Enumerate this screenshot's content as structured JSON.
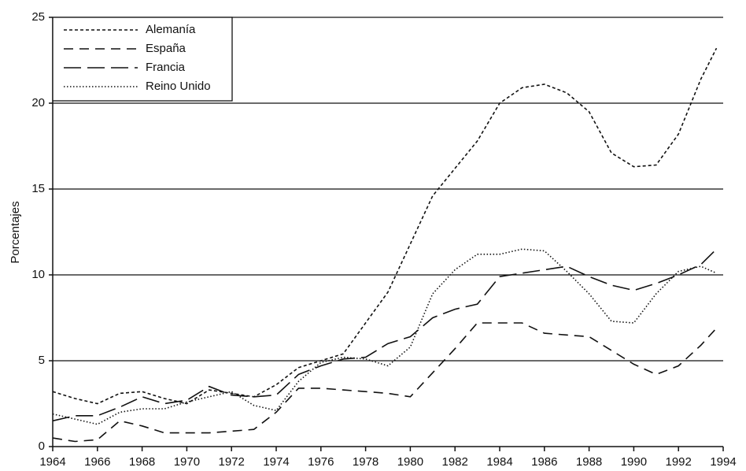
{
  "chart_data": {
    "type": "line",
    "ylabel": "Porcentajes",
    "x": [
      1964,
      1965,
      1966,
      1967,
      1968,
      1969,
      1970,
      1971,
      1972,
      1973,
      1974,
      1975,
      1976,
      1977,
      1978,
      1979,
      1980,
      1981,
      1982,
      1983,
      1984,
      1985,
      1986,
      1987,
      1988,
      1989,
      1990,
      1991,
      1992,
      1993,
      1993.7
    ],
    "series": [
      {
        "name": "Alemanía",
        "color": "#111111",
        "dash": "4,3",
        "values": [
          3.2,
          2.8,
          2.5,
          3.1,
          3.2,
          2.8,
          2.5,
          3.3,
          3.1,
          2.9,
          3.6,
          4.6,
          5.0,
          5.4,
          7.2,
          9.0,
          11.8,
          14.6,
          16.2,
          17.8,
          20.0,
          20.9,
          21.1,
          20.6,
          19.5,
          17.1,
          16.3,
          16.4,
          18.2,
          21.4,
          23.2
        ]
      },
      {
        "name": "España",
        "color": "#111111",
        "dash": "12,8",
        "values": [
          0.5,
          0.3,
          0.4,
          1.5,
          1.2,
          0.8,
          0.8,
          0.8,
          0.9,
          1.0,
          2.0,
          3.4,
          3.4,
          3.3,
          3.2,
          3.1,
          2.9,
          4.3,
          5.7,
          7.2,
          7.2,
          7.2,
          6.6,
          6.5,
          6.4,
          5.6,
          4.8,
          4.2,
          4.7,
          5.9,
          6.9
        ]
      },
      {
        "name": "Francia",
        "color": "#111111",
        "dash": "22,8",
        "values": [
          1.5,
          1.8,
          1.8,
          2.3,
          2.9,
          2.5,
          2.7,
          3.5,
          3.0,
          2.9,
          3.0,
          4.2,
          4.7,
          5.1,
          5.2,
          6.0,
          6.4,
          7.5,
          8.0,
          8.3,
          9.9,
          10.1,
          10.3,
          10.5,
          9.9,
          9.4,
          9.1,
          9.5,
          10.0,
          10.6,
          11.5
        ]
      },
      {
        "name": "Reino Unido",
        "color": "#111111",
        "dash": "1.5,2.5",
        "values": [
          1.9,
          1.6,
          1.3,
          2.0,
          2.2,
          2.2,
          2.6,
          2.9,
          3.2,
          2.4,
          2.1,
          3.8,
          4.9,
          5.2,
          5.1,
          4.7,
          5.8,
          8.9,
          10.3,
          11.2,
          11.2,
          11.5,
          11.4,
          10.2,
          8.9,
          7.3,
          7.2,
          8.9,
          10.2,
          10.5,
          10.1
        ]
      }
    ],
    "xlim": [
      1964,
      1994
    ],
    "xticks": [
      1964,
      1966,
      1968,
      1970,
      1972,
      1974,
      1976,
      1978,
      1980,
      1982,
      1984,
      1986,
      1988,
      1990,
      1992,
      1994
    ],
    "ylim": [
      0,
      25
    ],
    "yticks": [
      0,
      5,
      10,
      15,
      20,
      25
    ],
    "grid": true,
    "legend": "upper-left"
  }
}
